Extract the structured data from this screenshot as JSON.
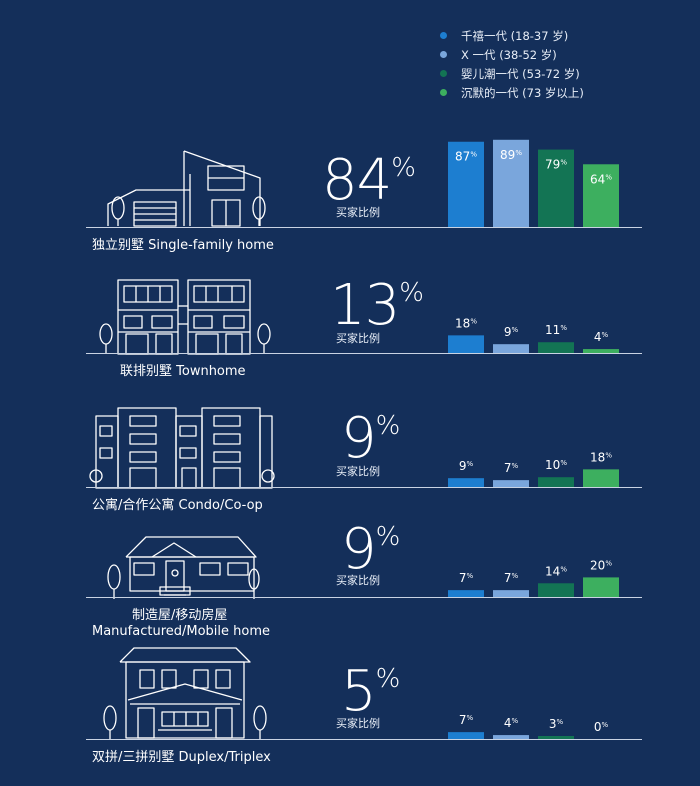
{
  "legend": {
    "items": [
      {
        "label": "千禧一代 (18-37 岁)",
        "color": "#1d7ed0"
      },
      {
        "label": "X 一代 (38-52 岁)",
        "color": "#7aa6dc"
      },
      {
        "label": "婴儿潮一代 (53-72 岁)",
        "color": "#137454"
      },
      {
        "label": "沉默的一代 (73 岁以上)",
        "color": "#3daf5f"
      }
    ]
  },
  "rows": [
    {
      "label_lines": [
        "独立别墅 Single-family home"
      ],
      "total": "84",
      "sub": "买家比例"
    },
    {
      "label_lines": [
        "联排别墅 Townhome"
      ],
      "total": "13",
      "sub": "买家比例"
    },
    {
      "label_lines": [
        "公寓/合作公寓 Condo/Co-op"
      ],
      "total": "9",
      "sub": "买家比例"
    },
    {
      "label_lines": [
        "制造屋/移动房屋",
        "Manufactured/Mobile home"
      ],
      "total": "9",
      "sub": "买家比例"
    },
    {
      "label_lines": [
        "双拼/三拼别墅 Duplex/Triplex"
      ],
      "total": "5",
      "sub": "买家比例"
    }
  ],
  "chart_data": {
    "type": "bar",
    "categories": [
      "独立别墅 Single-family home",
      "联排别墅 Townhome",
      "公寓/合作公寓 Condo/Co-op",
      "制造屋/移动房屋 Manufactured/Mobile home",
      "双拼/三拼别墅 Duplex/Triplex"
    ],
    "overall": [
      84,
      13,
      9,
      9,
      5
    ],
    "series": [
      {
        "name": "千禧一代 (18-37 岁)",
        "values": [
          87,
          18,
          9,
          7,
          7
        ]
      },
      {
        "name": "X 一代 (38-52 岁)",
        "values": [
          89,
          9,
          7,
          7,
          4
        ]
      },
      {
        "name": "婴儿潮一代 (53-72 岁)",
        "values": [
          79,
          11,
          10,
          14,
          3
        ]
      },
      {
        "name": "沉默的一代 (73 岁以上)",
        "values": [
          64,
          4,
          18,
          20,
          0
        ]
      }
    ],
    "value_unit": "%",
    "legend": "top-right"
  }
}
